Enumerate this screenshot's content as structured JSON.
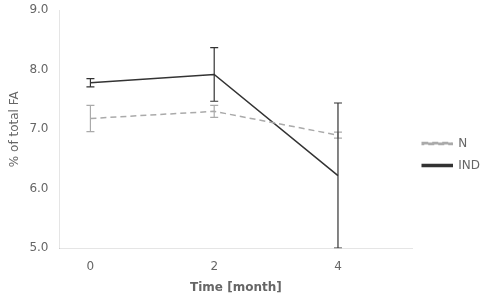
{
  "chart_data": {
    "type": "line",
    "xlabel": "Time [month]",
    "ylabel": "% of total FA",
    "x": [
      0,
      2,
      4
    ],
    "series": [
      {
        "name": "N",
        "color": "#aaaaaa",
        "line_style": "dashed",
        "marker": "none",
        "values": [
          7.18,
          7.3,
          6.9
        ],
        "yerr": [
          0.22,
          0.1,
          0.05
        ]
      },
      {
        "name": "IND",
        "color": "#333333",
        "line_style": "solid",
        "marker": "none",
        "values": [
          7.78,
          7.92,
          6.22
        ],
        "yerr": [
          0.07,
          0.45,
          1.22
        ]
      }
    ],
    "xlim": [
      -0.5,
      5.2
    ],
    "xticks": [
      0,
      2,
      4
    ],
    "ylim": [
      5.0,
      9.0
    ],
    "yticks": [
      {
        "value": 5.0,
        "label": "5.0"
      },
      {
        "value": 6.0,
        "label": "6.0"
      },
      {
        "value": 7.0,
        "label": "7.0"
      },
      {
        "value": 8.0,
        "label": "8.0"
      },
      {
        "value": 9.0,
        "label": "9.0"
      }
    ],
    "grid": false,
    "legend": "right"
  }
}
